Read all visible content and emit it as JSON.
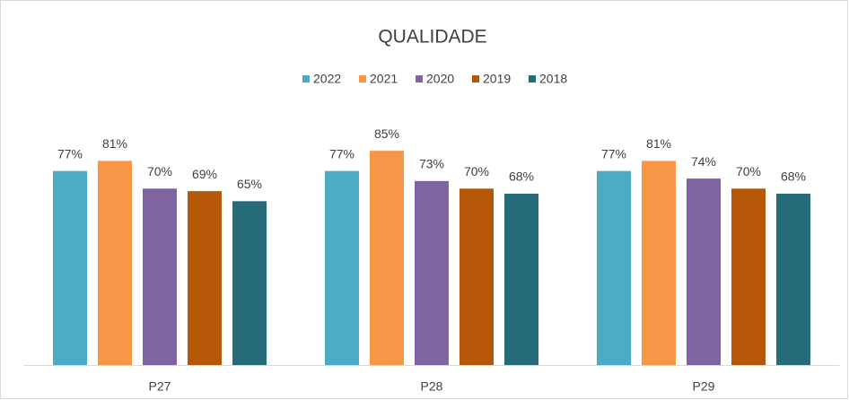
{
  "chart_data": {
    "type": "bar",
    "title": "QUALIDADE",
    "categories": [
      "P27",
      "P28",
      "P29"
    ],
    "series": [
      {
        "name": "2022",
        "color": "#4bacc6",
        "values": [
          77,
          77,
          77
        ],
        "value_labels": [
          "77%",
          "77%",
          "77%"
        ]
      },
      {
        "name": "2021",
        "color": "#f79646",
        "values": [
          81,
          85,
          81
        ],
        "value_labels": [
          "81%",
          "85%",
          "81%"
        ]
      },
      {
        "name": "2020",
        "color": "#8064a2",
        "values": [
          70,
          73,
          74
        ],
        "value_labels": [
          "70%",
          "73%",
          "74%"
        ]
      },
      {
        "name": "2019",
        "color": "#b65708",
        "values": [
          69,
          70,
          70
        ],
        "value_labels": [
          "69%",
          "70%",
          "70%"
        ]
      },
      {
        "name": "2018",
        "color": "#256b7a",
        "values": [
          65,
          68,
          68
        ],
        "value_labels": [
          "65%",
          "68%",
          "68%"
        ]
      }
    ],
    "ylim": [
      0,
      100
    ],
    "legend": "top"
  }
}
